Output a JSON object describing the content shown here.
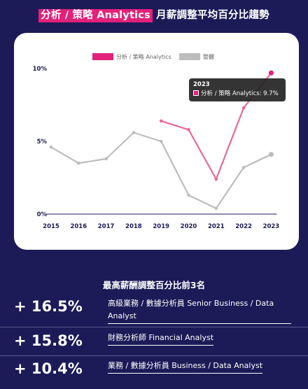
{
  "header": {
    "title_highlight": "分析 / 策略 Analytics",
    "title_rest": "月薪調整平均百分比趨勢"
  },
  "colors": {
    "background": "#1c1a57",
    "analytics": "#e3217a",
    "market": "#bdbdbd"
  },
  "chart_data": {
    "type": "line",
    "x": [
      "2015",
      "2016",
      "2017",
      "2018",
      "2019",
      "2020",
      "2021",
      "2022",
      "2023"
    ],
    "ylim": [
      0,
      10
    ],
    "yticks": [
      "0%",
      "5%",
      "10%"
    ],
    "grid": false,
    "legend_position": "top-center",
    "series": [
      {
        "name": "分析 / 策略 Analytics",
        "color": "#e3217a",
        "values": [
          null,
          null,
          null,
          null,
          6.4,
          5.8,
          2.4,
          7.3,
          9.7
        ]
      },
      {
        "name": "整體",
        "color": "#bdbdbd",
        "values": [
          4.6,
          3.5,
          3.8,
          5.6,
          5.0,
          1.3,
          0.4,
          3.2,
          4.1
        ]
      }
    ],
    "tooltip": {
      "year": "2023",
      "text": "分析 / 策略 Analytics: 9.7%"
    }
  },
  "ranking": {
    "title": "最高薪酬調整百分比前3名",
    "items": [
      {
        "value": "+ 16.5%",
        "line1": "高級業務 / 數據分析員 Senior Business / Data",
        "line2": "Analyst"
      },
      {
        "value": "+ 15.8%",
        "line1": "財務分析師 Financial Analyst",
        "line2": ""
      },
      {
        "value": "+ 10.4%",
        "line1": "業務 / 數據分析員 Business / Data Analyst",
        "line2": ""
      }
    ]
  }
}
